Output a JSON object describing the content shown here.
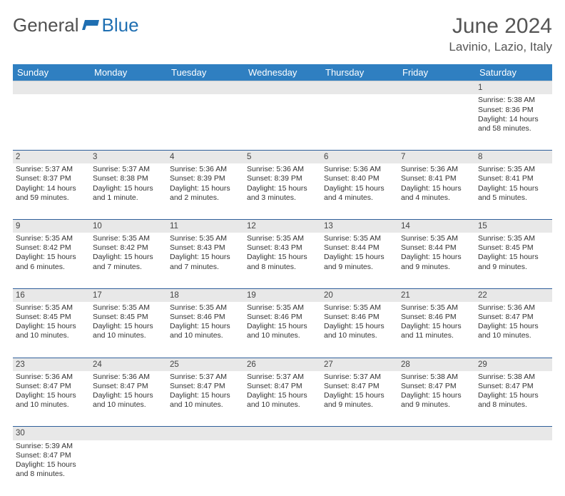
{
  "logo": {
    "part1": "General",
    "part2": "Blue"
  },
  "title": "June 2024",
  "subtitle": "Lavinio, Lazio, Italy",
  "colors": {
    "header_bg": "#2f7fc1",
    "header_fg": "#ffffff",
    "daynum_bg": "#e8e8e8",
    "row_divider": "#2f5f9a",
    "title_color": "#555555",
    "logo_gray": "#505050",
    "logo_blue": "#1f6fb2"
  },
  "day_headers": [
    "Sunday",
    "Monday",
    "Tuesday",
    "Wednesday",
    "Thursday",
    "Friday",
    "Saturday"
  ],
  "weeks": [
    [
      null,
      null,
      null,
      null,
      null,
      null,
      {
        "n": "1",
        "sr": "5:38 AM",
        "ss": "8:36 PM",
        "dl": "14 hours and 58 minutes."
      }
    ],
    [
      {
        "n": "2",
        "sr": "5:37 AM",
        "ss": "8:37 PM",
        "dl": "14 hours and 59 minutes."
      },
      {
        "n": "3",
        "sr": "5:37 AM",
        "ss": "8:38 PM",
        "dl": "15 hours and 1 minute."
      },
      {
        "n": "4",
        "sr": "5:36 AM",
        "ss": "8:39 PM",
        "dl": "15 hours and 2 minutes."
      },
      {
        "n": "5",
        "sr": "5:36 AM",
        "ss": "8:39 PM",
        "dl": "15 hours and 3 minutes."
      },
      {
        "n": "6",
        "sr": "5:36 AM",
        "ss": "8:40 PM",
        "dl": "15 hours and 4 minutes."
      },
      {
        "n": "7",
        "sr": "5:36 AM",
        "ss": "8:41 PM",
        "dl": "15 hours and 4 minutes."
      },
      {
        "n": "8",
        "sr": "5:35 AM",
        "ss": "8:41 PM",
        "dl": "15 hours and 5 minutes."
      }
    ],
    [
      {
        "n": "9",
        "sr": "5:35 AM",
        "ss": "8:42 PM",
        "dl": "15 hours and 6 minutes."
      },
      {
        "n": "10",
        "sr": "5:35 AM",
        "ss": "8:42 PM",
        "dl": "15 hours and 7 minutes."
      },
      {
        "n": "11",
        "sr": "5:35 AM",
        "ss": "8:43 PM",
        "dl": "15 hours and 7 minutes."
      },
      {
        "n": "12",
        "sr": "5:35 AM",
        "ss": "8:43 PM",
        "dl": "15 hours and 8 minutes."
      },
      {
        "n": "13",
        "sr": "5:35 AM",
        "ss": "8:44 PM",
        "dl": "15 hours and 9 minutes."
      },
      {
        "n": "14",
        "sr": "5:35 AM",
        "ss": "8:44 PM",
        "dl": "15 hours and 9 minutes."
      },
      {
        "n": "15",
        "sr": "5:35 AM",
        "ss": "8:45 PM",
        "dl": "15 hours and 9 minutes."
      }
    ],
    [
      {
        "n": "16",
        "sr": "5:35 AM",
        "ss": "8:45 PM",
        "dl": "15 hours and 10 minutes."
      },
      {
        "n": "17",
        "sr": "5:35 AM",
        "ss": "8:45 PM",
        "dl": "15 hours and 10 minutes."
      },
      {
        "n": "18",
        "sr": "5:35 AM",
        "ss": "8:46 PM",
        "dl": "15 hours and 10 minutes."
      },
      {
        "n": "19",
        "sr": "5:35 AM",
        "ss": "8:46 PM",
        "dl": "15 hours and 10 minutes."
      },
      {
        "n": "20",
        "sr": "5:35 AM",
        "ss": "8:46 PM",
        "dl": "15 hours and 10 minutes."
      },
      {
        "n": "21",
        "sr": "5:35 AM",
        "ss": "8:46 PM",
        "dl": "15 hours and 11 minutes."
      },
      {
        "n": "22",
        "sr": "5:36 AM",
        "ss": "8:47 PM",
        "dl": "15 hours and 10 minutes."
      }
    ],
    [
      {
        "n": "23",
        "sr": "5:36 AM",
        "ss": "8:47 PM",
        "dl": "15 hours and 10 minutes."
      },
      {
        "n": "24",
        "sr": "5:36 AM",
        "ss": "8:47 PM",
        "dl": "15 hours and 10 minutes."
      },
      {
        "n": "25",
        "sr": "5:37 AM",
        "ss": "8:47 PM",
        "dl": "15 hours and 10 minutes."
      },
      {
        "n": "26",
        "sr": "5:37 AM",
        "ss": "8:47 PM",
        "dl": "15 hours and 10 minutes."
      },
      {
        "n": "27",
        "sr": "5:37 AM",
        "ss": "8:47 PM",
        "dl": "15 hours and 9 minutes."
      },
      {
        "n": "28",
        "sr": "5:38 AM",
        "ss": "8:47 PM",
        "dl": "15 hours and 9 minutes."
      },
      {
        "n": "29",
        "sr": "5:38 AM",
        "ss": "8:47 PM",
        "dl": "15 hours and 8 minutes."
      }
    ],
    [
      {
        "n": "30",
        "sr": "5:39 AM",
        "ss": "8:47 PM",
        "dl": "15 hours and 8 minutes."
      },
      null,
      null,
      null,
      null,
      null,
      null
    ]
  ],
  "labels": {
    "sunrise": "Sunrise:",
    "sunset": "Sunset:",
    "daylight": "Daylight:"
  }
}
